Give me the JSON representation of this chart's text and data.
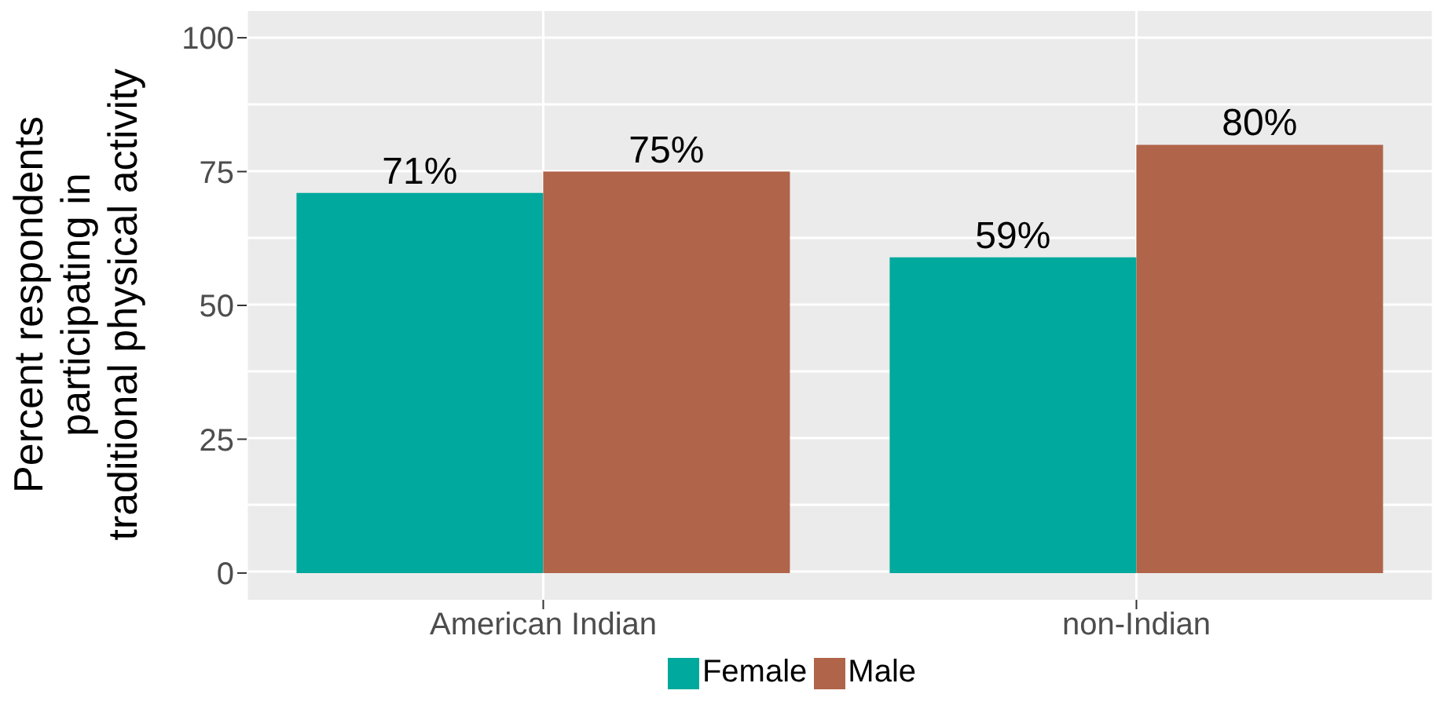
{
  "chart_data": {
    "type": "bar",
    "ylabel": "Percent respondents\nparticipating in\ntraditional physical activity",
    "categories": [
      "American Indian",
      "non-Indian"
    ],
    "series": [
      {
        "name": "Female",
        "color": "#00a99d",
        "values": [
          71,
          59
        ],
        "value_labels": [
          "71%",
          "59%"
        ]
      },
      {
        "name": "Male",
        "color": "#b0644a",
        "values": [
          75,
          80
        ],
        "value_labels": [
          "75%",
          "80%"
        ]
      }
    ],
    "ylim": [
      -5,
      105
    ],
    "yticks": [
      0,
      25,
      50,
      75,
      100
    ],
    "grid": true,
    "legend": "bottom"
  }
}
